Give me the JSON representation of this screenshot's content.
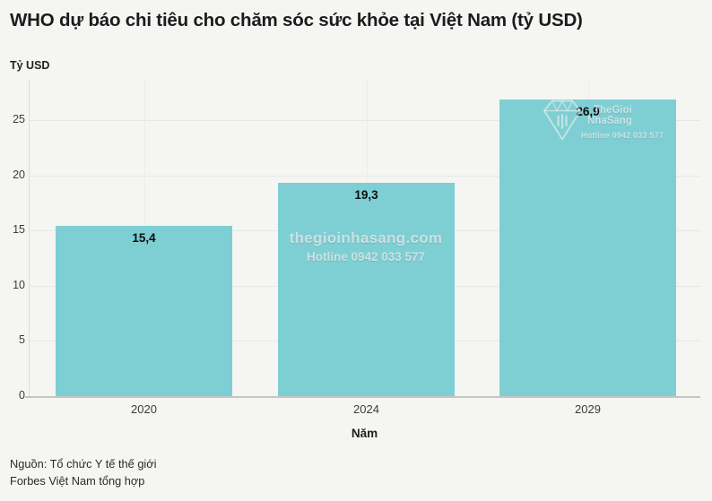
{
  "page": {
    "title": "WHO dự báo chi tiêu cho chăm sóc sức khỏe tại Việt Nam (tỷ USD)",
    "y_axis_unit": "Tỷ USD",
    "x_axis_title": "Năm",
    "source_line1": "Nguồn: Tổ chức Y tế thế giới",
    "source_line2": "Forbes Việt Nam tổng hợp"
  },
  "chart_data": {
    "type": "bar",
    "title": "WHO dự báo chi tiêu cho chăm sóc sức khỏe tại Việt Nam (tỷ USD)",
    "categories": [
      "2020",
      "2024",
      "2029"
    ],
    "values": [
      15.4,
      19.3,
      26.9
    ],
    "value_labels": [
      "15,4",
      "19,3",
      "26,9"
    ],
    "xlabel": "Năm",
    "ylabel": "Tỷ USD",
    "ylim": [
      0,
      28.7
    ],
    "yticks": [
      0,
      5,
      10,
      15,
      20,
      25
    ],
    "grid": true,
    "legend": "none",
    "bar_color": "#7ecfd4",
    "background_color": "#f5f5f3",
    "value_label_color": "#0d0d0d"
  },
  "watermark": {
    "site": "thegioinhasang.com",
    "hotline": "Hotline 0942 033 577",
    "logo_line1": "TheGioi",
    "logo_line2": "NhaSang",
    "logo_hotline": "Hotline 0942 033 577"
  }
}
